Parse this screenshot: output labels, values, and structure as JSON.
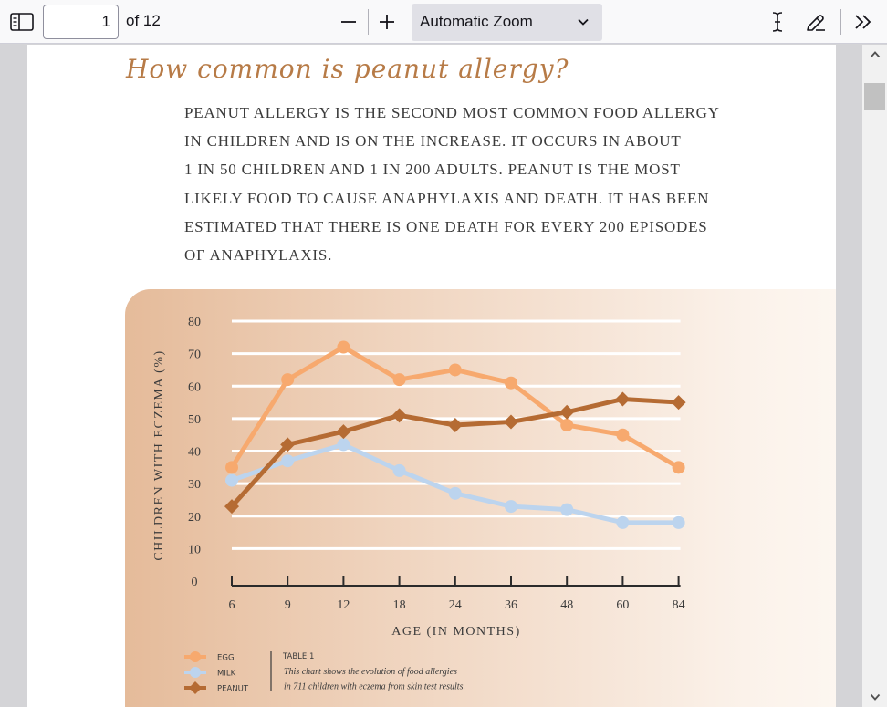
{
  "toolbar": {
    "page_number": "1",
    "page_count_label": "of 12",
    "zoom_label": "Automatic Zoom",
    "icons": [
      "sidebar-toggle-icon",
      "zoom-out-icon",
      "zoom-in-icon",
      "chevron-down-icon",
      "text-cursor-icon",
      "draw-pen-icon",
      "double-chevron-right-icon"
    ]
  },
  "document": {
    "heading": "How common is peanut allergy?",
    "paragraph_lines": [
      "Peanut allergy is the second most common food allergy",
      "in children and is on the increase. It occurs in about",
      "1 in 50 children and 1 in 200 adults. Peanut is the most",
      "likely food to cause anaphylaxis and death. It has been",
      "estimated that there is one death for every 200 episodes",
      "of anaphylaxis."
    ]
  },
  "chart_data": {
    "type": "line",
    "title": "",
    "xlabel": "AGE (IN MONTHS)",
    "ylabel": "CHILDREN WITH ECZEMA (%)",
    "categories": [
      "6",
      "9",
      "12",
      "18",
      "24",
      "36",
      "48",
      "60",
      "84"
    ],
    "y_ticks": [
      "0",
      "10",
      "20",
      "30",
      "40",
      "50",
      "60",
      "70",
      "80"
    ],
    "ylim": [
      0,
      80
    ],
    "grid": true,
    "legend_position": "bottom-left",
    "series": [
      {
        "name": "EGG",
        "color": "#f7a96e",
        "marker": "circle",
        "values": [
          35,
          62,
          72,
          62,
          65,
          61,
          48,
          45,
          35
        ]
      },
      {
        "name": "MILK",
        "color": "#bcd4ee",
        "marker": "circle",
        "values": [
          31,
          37,
          42,
          34,
          27,
          23,
          22,
          18,
          18
        ]
      },
      {
        "name": "PEANUT",
        "color": "#b56b33",
        "marker": "diamond",
        "values": [
          23,
          42,
          46,
          51,
          48,
          49,
          52,
          56,
          55
        ]
      }
    ],
    "note_title": "TABLE 1",
    "note_lines": [
      "This chart shows the evolution of food allergies",
      "in 711 children with eczema from skin test results."
    ]
  }
}
